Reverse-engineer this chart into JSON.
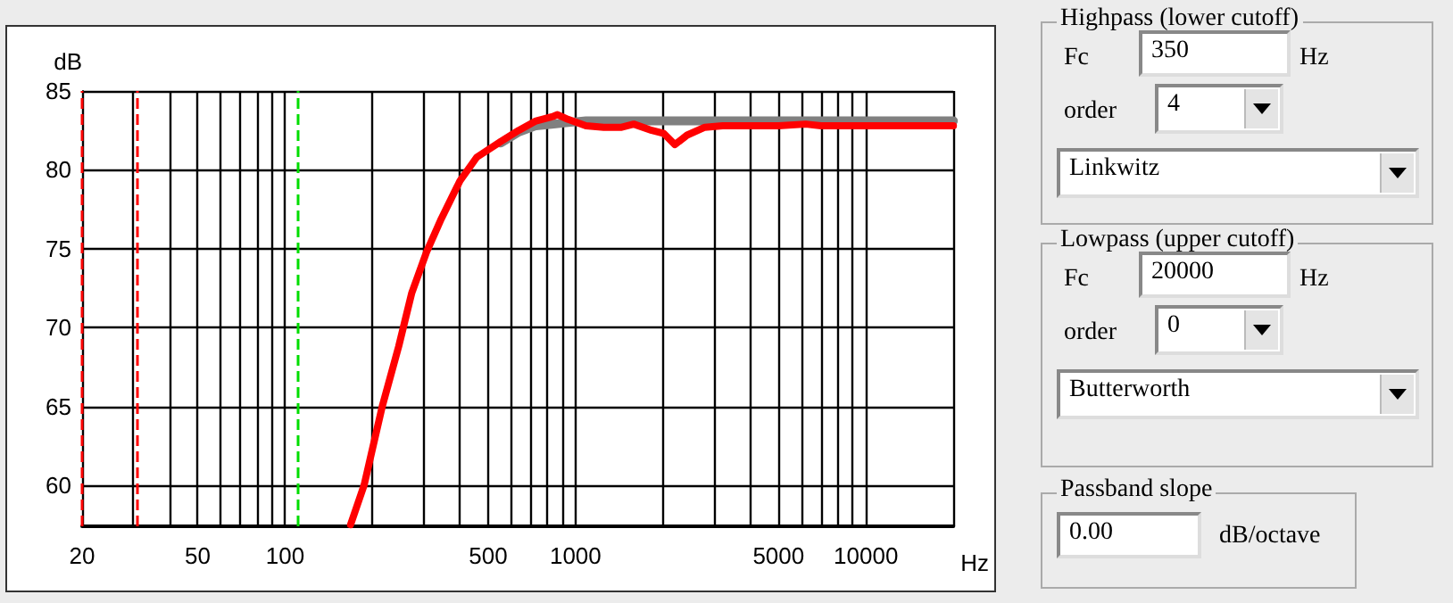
{
  "chart_data": [
    {
      "type": "line",
      "xlabel": "Hz",
      "ylabel": "dB",
      "log": "x",
      "grid": true,
      "line_style": "solid",
      "xlim": [
        20,
        20000
      ],
      "ylim": [
        57.4,
        85
      ],
      "xticks": [
        20,
        {
          "value": 30,
          "label": null
        },
        {
          "value": 40,
          "label": null
        },
        50,
        {
          "value": 60,
          "label": null
        },
        {
          "value": 70,
          "label": null
        },
        {
          "value": 80,
          "label": null
        },
        {
          "value": 90,
          "label": null
        },
        100,
        {
          "value": 200,
          "label": null
        },
        {
          "value": 300,
          "label": null
        },
        {
          "value": 400,
          "label": null
        },
        500,
        {
          "value": 600,
          "label": null
        },
        {
          "value": 700,
          "label": null
        },
        {
          "value": 800,
          "label": null
        },
        {
          "value": 900,
          "label": null
        },
        1000,
        {
          "value": 2000,
          "label": null
        },
        {
          "value": 3000,
          "label": null
        },
        {
          "value": 4000,
          "label": null
        },
        5000,
        {
          "value": 6000,
          "label": null
        },
        {
          "value": 7000,
          "label": null
        },
        {
          "value": 8000,
          "label": null
        },
        {
          "value": 9000,
          "label": null
        },
        10000,
        {
          "value": 20000,
          "label": null
        }
      ],
      "yticks": [
        60,
        65,
        70,
        75,
        80,
        85
      ],
      "series": [
        {
          "color": "#808080",
          "x": [
            553,
            637,
            731,
            841,
            942,
            1086,
            1500,
            3000,
            6000,
            10000,
            20000
          ],
          "values": [
            81.7,
            82.4,
            82.8,
            82.9,
            83.0,
            83.1,
            83.1,
            83.1,
            83.1,
            83.1,
            83.1
          ]
        },
        {
          "color": "#ff0000",
          "x": [
            168,
            187,
            216,
            246,
            273,
            307,
            345,
            400,
            457,
            553,
            637,
            731,
            841,
            867,
            942,
            1086,
            1251,
            1441,
            1586,
            1830,
            2015,
            2198,
            2421,
            2787,
            3208,
            5000,
            6200,
            7000,
            10000,
            20000
          ],
          "values": [
            57.5,
            60.0,
            65.0,
            68.8,
            72.2,
            74.8,
            76.9,
            79.3,
            80.8,
            81.8,
            82.5,
            83.1,
            83.4,
            83.5,
            83.2,
            82.8,
            82.7,
            82.7,
            82.9,
            82.5,
            82.3,
            81.6,
            82.2,
            82.7,
            82.8,
            82.8,
            82.9,
            82.8,
            82.8,
            82.8
          ]
        }
      ],
      "ref_lines": [
        {
          "axis": "x",
          "value": 20,
          "color": "#ff0000",
          "line_style": "dashed"
        },
        {
          "axis": "x",
          "value": 31,
          "color": "#ff0000",
          "line_style": "dashed"
        },
        {
          "axis": "x",
          "value": 111,
          "color": "#00dd00",
          "line_style": "dashed"
        }
      ]
    },
    {
      "type": "other",
      "title": "Highpass (lower cutoff)",
      "annotations": [
        "Fc",
        "350",
        "Hz",
        "order",
        "4",
        "Linkwitz"
      ]
    },
    {
      "type": "other",
      "title": "Lowpass (upper cutoff)",
      "annotations": [
        "Fc",
        "20000",
        "Hz",
        "order",
        "0",
        "Butterworth"
      ]
    },
    {
      "type": "other",
      "title": "Passband slope",
      "annotations": [
        "0.00",
        "dB/octave"
      ]
    }
  ]
}
